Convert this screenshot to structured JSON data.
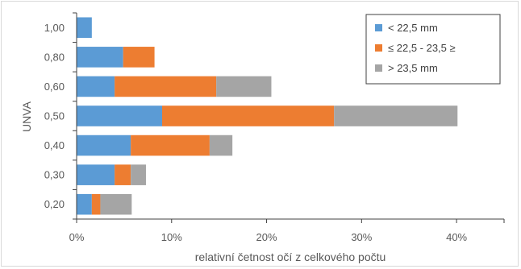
{
  "chart_data": {
    "type": "bar",
    "orientation": "horizontal",
    "stacked": true,
    "categories": [
      "0,20",
      "0,30",
      "0,40",
      "0,50",
      "0,60",
      "0,80",
      "1,00"
    ],
    "series": [
      {
        "name": "< 22,5 mm",
        "color": "#5b9bd5",
        "values": [
          1.6,
          4.0,
          5.7,
          9.0,
          4.0,
          4.9,
          1.6
        ]
      },
      {
        "name": "≤ 22,5 - 23,5 ≥",
        "color": "#ed7d31",
        "values": [
          0.9,
          1.7,
          8.3,
          18.1,
          10.7,
          3.3,
          0
        ]
      },
      {
        "name": "> 23,5 mm",
        "color": "#a5a5a5",
        "values": [
          3.3,
          1.6,
          2.4,
          13.0,
          5.8,
          0,
          0
        ]
      }
    ],
    "xlabel": "relativní četnost očí z celkového počtu",
    "ylabel": "UNVA",
    "xlim": [
      0,
      45
    ],
    "xticks": [
      "0%",
      "10%",
      "20%",
      "30%",
      "40%"
    ],
    "xtick_values": [
      0,
      10,
      20,
      30,
      40
    ],
    "grid": false,
    "legend_position": "top-right"
  }
}
